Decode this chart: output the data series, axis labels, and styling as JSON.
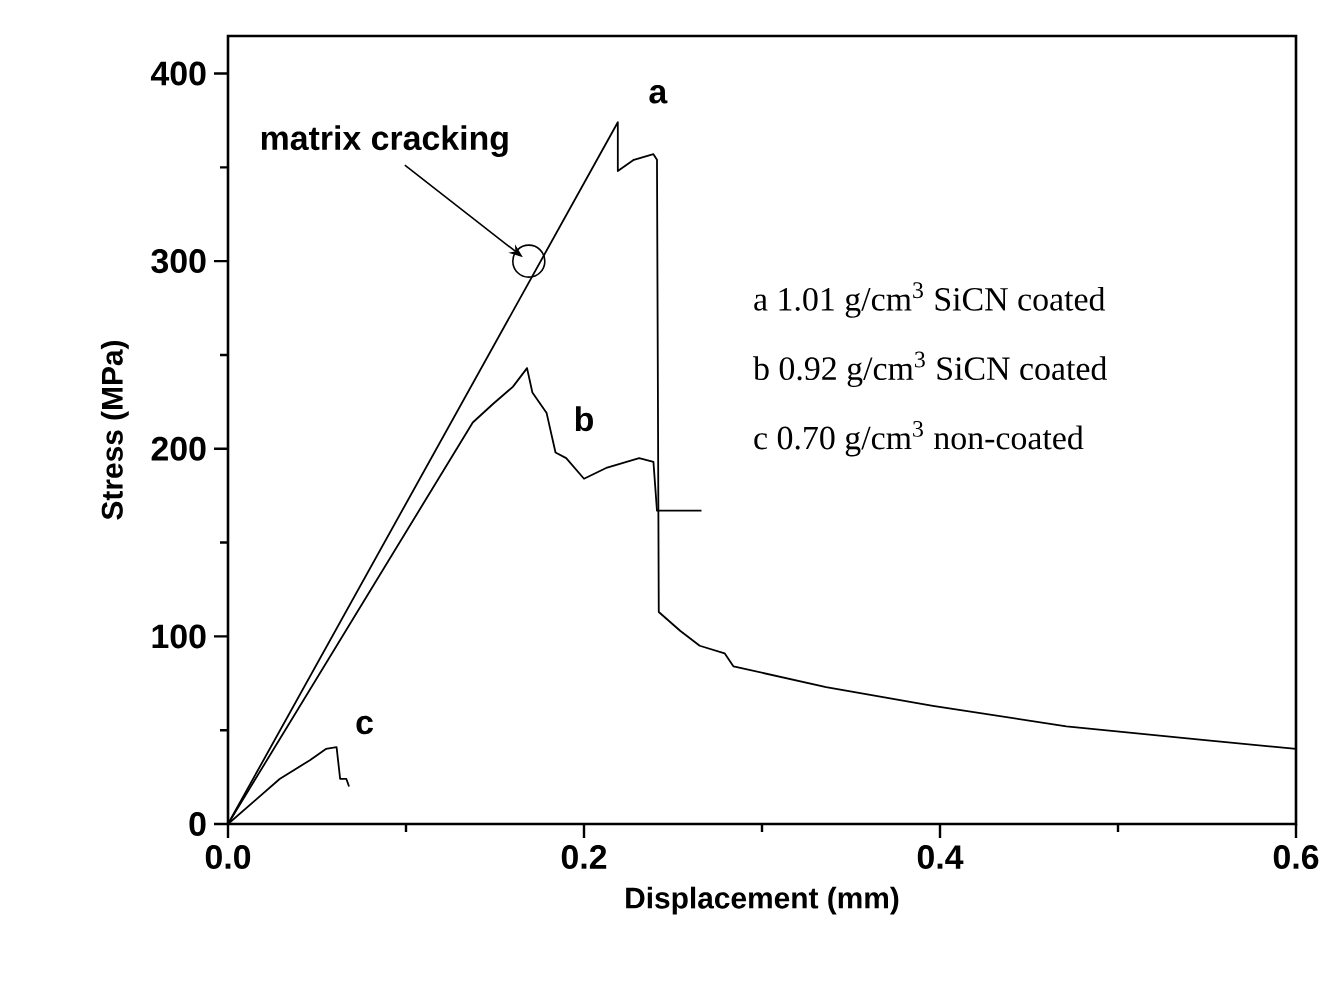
{
  "chart_data": {
    "type": "line",
    "xlabel": "Displacement (mm)",
    "ylabel": "Stress (MPa)",
    "xlim": [
      0,
      0.6
    ],
    "ylim": [
      0,
      420
    ],
    "xticks": [
      {
        "value": 0,
        "label": "0.0"
      },
      {
        "value": 0.1,
        "label": null
      },
      {
        "value": 0.2,
        "label": "0.2"
      },
      {
        "value": 0.3,
        "label": null
      },
      {
        "value": 0.4,
        "label": "0.4"
      },
      {
        "value": 0.5,
        "label": null
      },
      {
        "value": 0.6,
        "label": "0.6"
      }
    ],
    "yticks": [
      0,
      {
        "value": 50,
        "label": null
      },
      100,
      {
        "value": 150,
        "label": null
      },
      200,
      {
        "value": 250,
        "label": null
      },
      300,
      {
        "value": 350,
        "label": null
      },
      400
    ],
    "grid": false,
    "marker": "none",
    "line_style": "solid",
    "series": [
      {
        "color": "#000000",
        "x": [
          0,
          0.219,
          0.219,
          0.228,
          0.239,
          0.241,
          0.242,
          0.254,
          0.265,
          0.279,
          0.284,
          0.336,
          0.396,
          0.471,
          0.546,
          0.6
        ],
        "values": [
          0,
          374,
          348,
          354,
          357,
          354,
          113,
          103,
          95,
          91,
          84,
          73,
          63,
          52,
          45,
          40
        ]
      },
      {
        "color": "#000000",
        "x": [
          0,
          0.1375,
          0.149,
          0.16,
          0.168,
          0.171,
          0.179,
          0.184,
          0.19,
          0.2,
          0.213,
          0.231,
          0.239,
          0.241,
          0.266
        ],
        "values": [
          0,
          214,
          224,
          233,
          243,
          230,
          219,
          198,
          195,
          184,
          190,
          195,
          193,
          167,
          167
        ]
      },
      {
        "color": "#000000",
        "x": [
          0,
          0.029,
          0.046,
          0.055,
          0.061,
          0.063,
          0.0665,
          0.068
        ],
        "values": [
          0,
          24,
          34,
          40,
          41,
          24,
          24,
          20
        ]
      }
    ],
    "annotations": [
      {
        "text": "matrix cracking",
        "x": 0.169,
        "y": 300
      },
      {
        "text": "a",
        "x": 0.219,
        "y": 374
      },
      {
        "text": "b",
        "x": 0.2,
        "y": 184
      },
      {
        "text": "c",
        "x": 0.061,
        "y": 41
      },
      "a   1.01 g/cm$^{3}$  SiCN coated",
      "b   0.92 g/cm$^{3}$  SiCN coated",
      "c   0.70 g/cm$^{3}$  non-coated"
    ]
  }
}
